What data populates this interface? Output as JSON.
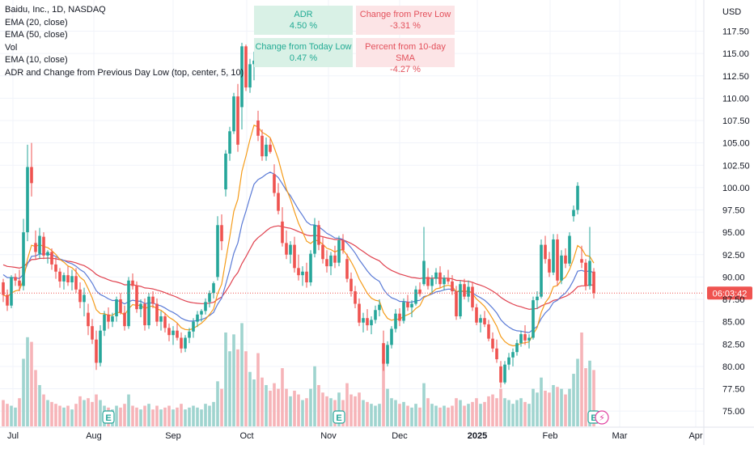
{
  "legend": {
    "title": "Baidu, Inc., 1D, NASDAQ",
    "lines": [
      "EMA (20, close)",
      "EMA (50, close)",
      "Vol",
      "EMA (10, close)",
      "ADR and Change from Previous Day Low (top, center, 5, 10)"
    ]
  },
  "stats_table": {
    "adr_label": "ADR",
    "adr_value": "4.50 %",
    "prev_low_label": "Change from Prev Low",
    "prev_low_value": "-3.31 %",
    "today_low_label": "Change from Today Low",
    "today_low_value": "0.47 %",
    "sma_label": "Percent from 10-day SMA",
    "sma_value": "-4.27 %"
  },
  "currency": "USD",
  "countdown": "06:03:42",
  "colors": {
    "up": "#26a69a",
    "down": "#ef5350",
    "ema10": "#f59c1a",
    "ema20": "#5b7bd6",
    "ema50": "#e0424f",
    "vol_up": "#9fd4cf",
    "vol_down": "#f6b4b8",
    "price_line": "#ef5350"
  },
  "chart_data": {
    "type": "candlestick",
    "symbol": "Baidu, Inc.",
    "interval": "1D",
    "exchange": "NASDAQ",
    "y_axis": {
      "ticks": [
        "117.50",
        "115.00",
        "112.50",
        "110.00",
        "107.50",
        "105.00",
        "102.50",
        "100.00",
        "97.50",
        "95.00",
        "92.50",
        "90.00",
        "87.50",
        "85.00",
        "82.50",
        "80.00",
        "77.50",
        "75.00"
      ],
      "range": [
        74.0,
        119.5
      ]
    },
    "x_axis": {
      "labels": [
        "Jul",
        "Aug",
        "Sep",
        "Oct",
        "Nov",
        "Dec",
        "2025",
        "Feb",
        "Mar",
        "Apr"
      ]
    },
    "last_price_marker": 88.2,
    "ohlc": [
      [
        89.4,
        89.8,
        87.2,
        88.0
      ],
      [
        88.0,
        88.6,
        86.2,
        86.8
      ],
      [
        86.8,
        90.2,
        86.5,
        90.0
      ],
      [
        90.0,
        90.4,
        89.0,
        89.6
      ],
      [
        89.6,
        90.8,
        88.4,
        89.0
      ],
      [
        89.0,
        96.5,
        88.5,
        95.0
      ],
      [
        95.0,
        104.8,
        94.0,
        102.3
      ],
      [
        102.3,
        105.0,
        99.0,
        100.5
      ],
      [
        93.8,
        95.2,
        92.0,
        92.8
      ],
      [
        92.6,
        95.5,
        92.0,
        94.6
      ],
      [
        94.5,
        95.0,
        92.0,
        92.4
      ],
      [
        92.4,
        93.0,
        91.5,
        92.8
      ],
      [
        92.8,
        93.2,
        90.8,
        91.4
      ],
      [
        91.4,
        92.2,
        89.8,
        90.6
      ],
      [
        90.6,
        91.0,
        88.8,
        89.5
      ],
      [
        89.5,
        90.5,
        88.6,
        90.2
      ],
      [
        90.2,
        91.2,
        89.0,
        89.4
      ],
      [
        89.4,
        90.8,
        88.5,
        90.1
      ],
      [
        90.1,
        91.0,
        88.2,
        88.6
      ],
      [
        88.6,
        89.4,
        86.5,
        87.2
      ],
      [
        87.2,
        88.8,
        85.6,
        88.0
      ],
      [
        86.0,
        87.0,
        83.5,
        84.5
      ],
      [
        84.5,
        85.3,
        82.5,
        83.0
      ],
      [
        83.0,
        84.0,
        79.6,
        80.4
      ],
      [
        80.4,
        84.6,
        80.0,
        84.0
      ],
      [
        84.0,
        86.2,
        83.4,
        85.8
      ],
      [
        85.8,
        86.6,
        84.2,
        85.0
      ],
      [
        85.0,
        86.0,
        84.4,
        85.6
      ],
      [
        85.6,
        87.8,
        85.0,
        87.5
      ],
      [
        87.5,
        88.2,
        85.8,
        86.0
      ],
      [
        86.0,
        86.8,
        84.0,
        84.5
      ],
      [
        84.5,
        90.0,
        84.2,
        89.6
      ],
      [
        89.6,
        90.4,
        88.6,
        89.0
      ],
      [
        89.0,
        89.5,
        86.0,
        86.4
      ],
      [
        86.4,
        87.5,
        85.5,
        87.0
      ],
      [
        87.0,
        87.6,
        84.0,
        84.6
      ],
      [
        84.6,
        88.2,
        84.2,
        87.8
      ],
      [
        87.8,
        88.4,
        86.5,
        87.0
      ],
      [
        87.0,
        87.6,
        84.5,
        85.0
      ],
      [
        85.0,
        86.2,
        84.0,
        85.6
      ],
      [
        85.6,
        86.0,
        83.8,
        84.3
      ],
      [
        84.3,
        84.8,
        82.8,
        83.5
      ],
      [
        83.5,
        84.5,
        82.4,
        84.0
      ],
      [
        84.0,
        84.8,
        82.9,
        83.2
      ],
      [
        83.2,
        83.8,
        81.5,
        82.0
      ],
      [
        82.0,
        83.5,
        81.6,
        83.2
      ],
      [
        83.2,
        84.3,
        82.6,
        83.9
      ],
      [
        83.9,
        85.4,
        83.2,
        85.0
      ],
      [
        85.0,
        86.2,
        84.4,
        85.8
      ],
      [
        85.8,
        86.4,
        85.0,
        86.2
      ],
      [
        86.2,
        87.6,
        85.8,
        87.2
      ],
      [
        87.2,
        88.5,
        86.6,
        88.2
      ],
      [
        88.2,
        89.5,
        87.6,
        89.3
      ],
      [
        90.0,
        96.8,
        89.6,
        95.8
      ],
      [
        95.8,
        97.0,
        93.0,
        94.0
      ],
      [
        99.8,
        104.2,
        99.0,
        103.8
      ],
      [
        103.8,
        106.8,
        103.0,
        106.3
      ],
      [
        106.3,
        110.6,
        106.0,
        110.2
      ],
      [
        110.2,
        111.6,
        104.0,
        104.8
      ],
      [
        109.0,
        116.2,
        106.5,
        115.8
      ],
      [
        115.8,
        116.0,
        110.8,
        111.2
      ],
      [
        111.2,
        114.4,
        110.6,
        113.8
      ],
      [
        113.8,
        115.2,
        112.0,
        114.2
      ],
      [
        107.5,
        108.6,
        105.2,
        105.8
      ],
      [
        105.8,
        106.5,
        103.0,
        103.5
      ],
      [
        103.5,
        105.6,
        103.0,
        104.8
      ],
      [
        104.8,
        105.5,
        103.8,
        104.0
      ],
      [
        101.5,
        102.6,
        99.0,
        99.4
      ],
      [
        99.4,
        100.5,
        97.0,
        97.4
      ],
      [
        96.2,
        97.8,
        93.4,
        93.8
      ],
      [
        93.8,
        95.2,
        92.0,
        92.5
      ],
      [
        92.5,
        94.0,
        91.5,
        93.6
      ],
      [
        93.6,
        94.5,
        90.5,
        91.0
      ],
      [
        91.0,
        92.5,
        89.6,
        90.2
      ],
      [
        90.2,
        91.2,
        89.0,
        90.6
      ],
      [
        90.6,
        91.6,
        88.8,
        89.4
      ],
      [
        89.4,
        93.0,
        89.0,
        92.6
      ],
      [
        92.6,
        96.6,
        92.2,
        95.8
      ],
      [
        95.8,
        96.3,
        93.0,
        93.6
      ],
      [
        93.6,
        94.5,
        91.5,
        92.0
      ],
      [
        92.0,
        93.0,
        90.5,
        91.2
      ],
      [
        91.2,
        92.8,
        90.2,
        92.4
      ],
      [
        92.4,
        93.5,
        91.0,
        91.6
      ],
      [
        91.6,
        94.6,
        91.2,
        94.1
      ],
      [
        94.1,
        94.8,
        92.6,
        93.0
      ],
      [
        92.0,
        92.6,
        89.4,
        89.8
      ],
      [
        89.8,
        90.5,
        87.8,
        88.4
      ],
      [
        88.4,
        89.0,
        86.5,
        87.0
      ],
      [
        87.0,
        87.6,
        84.5,
        84.9
      ],
      [
        84.9,
        86.0,
        83.8,
        85.4
      ],
      [
        85.4,
        86.4,
        84.0,
        84.6
      ],
      [
        84.6,
        85.6,
        83.6,
        85.2
      ],
      [
        85.2,
        86.8,
        84.8,
        86.3
      ],
      [
        86.3,
        87.5,
        85.6,
        86.9
      ],
      [
        82.6,
        84.0,
        79.5,
        80.3
      ],
      [
        80.3,
        82.8,
        80.0,
        82.4
      ],
      [
        82.4,
        84.5,
        82.0,
        84.2
      ],
      [
        84.2,
        86.4,
        83.8,
        85.9
      ],
      [
        85.9,
        86.5,
        84.5,
        85.1
      ],
      [
        85.1,
        87.6,
        84.8,
        87.2
      ],
      [
        87.2,
        88.0,
        86.2,
        86.6
      ],
      [
        86.6,
        87.4,
        85.5,
        87.0
      ],
      [
        87.0,
        89.0,
        86.8,
        88.6
      ],
      [
        88.6,
        89.4,
        87.8,
        88.1
      ],
      [
        89.2,
        95.6,
        89.0,
        91.8
      ],
      [
        90.0,
        91.0,
        88.6,
        89.0
      ],
      [
        89.0,
        90.2,
        88.2,
        89.8
      ],
      [
        89.8,
        91.0,
        89.2,
        90.5
      ],
      [
        90.5,
        91.2,
        88.8,
        89.2
      ],
      [
        89.2,
        90.2,
        88.5,
        89.9
      ],
      [
        89.9,
        90.8,
        89.2,
        89.5
      ],
      [
        89.5,
        90.2,
        88.0,
        88.4
      ],
      [
        88.4,
        89.0,
        85.2,
        85.6
      ],
      [
        85.6,
        89.6,
        85.3,
        89.2
      ],
      [
        89.2,
        89.8,
        87.5,
        87.8
      ],
      [
        87.8,
        89.6,
        87.2,
        88.9
      ],
      [
        88.9,
        89.4,
        86.2,
        86.6
      ],
      [
        86.6,
        87.0,
        84.6,
        84.9
      ],
      [
        84.9,
        85.8,
        83.8,
        85.4
      ],
      [
        85.4,
        86.2,
        84.4,
        84.7
      ],
      [
        84.7,
        85.2,
        82.8,
        83.1
      ],
      [
        83.1,
        83.8,
        81.6,
        82.0
      ],
      [
        82.0,
        83.0,
        80.4,
        80.8
      ],
      [
        80.0,
        80.6,
        77.6,
        78.2
      ],
      [
        78.2,
        80.6,
        78.0,
        80.2
      ],
      [
        80.2,
        81.5,
        79.6,
        81.0
      ],
      [
        81.0,
        82.0,
        80.0,
        81.6
      ],
      [
        81.6,
        83.0,
        81.2,
        82.6
      ],
      [
        82.6,
        84.0,
        82.2,
        83.6
      ],
      [
        83.6,
        84.6,
        82.4,
        82.9
      ],
      [
        82.9,
        83.6,
        82.0,
        83.2
      ],
      [
        83.2,
        87.8,
        83.0,
        87.4
      ],
      [
        87.4,
        88.4,
        86.4,
        87.8
      ],
      [
        87.8,
        94.2,
        87.6,
        93.6
      ],
      [
        93.6,
        94.6,
        91.5,
        92.0
      ],
      [
        92.0,
        92.8,
        90.0,
        90.5
      ],
      [
        90.5,
        94.8,
        90.2,
        94.2
      ],
      [
        94.2,
        94.8,
        89.0,
        89.6
      ],
      [
        89.6,
        93.0,
        89.2,
        92.4
      ],
      [
        92.4,
        93.2,
        91.0,
        91.5
      ],
      [
        91.5,
        95.0,
        91.2,
        94.6
      ],
      [
        96.8,
        98.0,
        96.2,
        97.5
      ],
      [
        97.5,
        100.6,
        97.0,
        100.2
      ],
      [
        92.0,
        93.5,
        91.0,
        91.6
      ],
      [
        91.6,
        92.0,
        88.5,
        89.0
      ],
      [
        89.0,
        95.6,
        88.6,
        91.8
      ],
      [
        90.6,
        91.0,
        87.6,
        88.2
      ]
    ],
    "volume": [
      [
        28,
        0
      ],
      [
        24,
        0
      ],
      [
        22,
        1
      ],
      [
        20,
        1
      ],
      [
        30,
        0
      ],
      [
        72,
        1
      ],
      [
        95,
        1
      ],
      [
        90,
        0
      ],
      [
        60,
        0
      ],
      [
        44,
        1
      ],
      [
        34,
        0
      ],
      [
        28,
        1
      ],
      [
        26,
        0
      ],
      [
        24,
        0
      ],
      [
        22,
        0
      ],
      [
        20,
        1
      ],
      [
        22,
        0
      ],
      [
        18,
        1
      ],
      [
        24,
        0
      ],
      [
        32,
        0
      ],
      [
        28,
        1
      ],
      [
        30,
        0
      ],
      [
        26,
        0
      ],
      [
        34,
        0
      ],
      [
        28,
        1
      ],
      [
        22,
        1
      ],
      [
        20,
        0
      ],
      [
        18,
        1
      ],
      [
        22,
        1
      ],
      [
        20,
        0
      ],
      [
        24,
        0
      ],
      [
        34,
        1
      ],
      [
        22,
        0
      ],
      [
        20,
        0
      ],
      [
        18,
        1
      ],
      [
        22,
        0
      ],
      [
        24,
        1
      ],
      [
        18,
        0
      ],
      [
        22,
        0
      ],
      [
        18,
        1
      ],
      [
        20,
        0
      ],
      [
        22,
        0
      ],
      [
        18,
        1
      ],
      [
        20,
        0
      ],
      [
        24,
        0
      ],
      [
        18,
        1
      ],
      [
        20,
        1
      ],
      [
        22,
        1
      ],
      [
        20,
        1
      ],
      [
        18,
        1
      ],
      [
        24,
        1
      ],
      [
        22,
        1
      ],
      [
        26,
        1
      ],
      [
        48,
        1
      ],
      [
        40,
        0
      ],
      [
        100,
        1
      ],
      [
        80,
        1
      ],
      [
        98,
        1
      ],
      [
        82,
        0
      ],
      [
        110,
        1
      ],
      [
        80,
        0
      ],
      [
        58,
        1
      ],
      [
        50,
        1
      ],
      [
        78,
        0
      ],
      [
        52,
        0
      ],
      [
        44,
        1
      ],
      [
        38,
        0
      ],
      [
        46,
        0
      ],
      [
        40,
        0
      ],
      [
        62,
        0
      ],
      [
        40,
        0
      ],
      [
        32,
        1
      ],
      [
        38,
        0
      ],
      [
        34,
        0
      ],
      [
        28,
        1
      ],
      [
        30,
        0
      ],
      [
        40,
        1
      ],
      [
        64,
        1
      ],
      [
        44,
        0
      ],
      [
        36,
        0
      ],
      [
        32,
        0
      ],
      [
        30,
        1
      ],
      [
        28,
        0
      ],
      [
        36,
        1
      ],
      [
        28,
        0
      ],
      [
        46,
        0
      ],
      [
        34,
        0
      ],
      [
        32,
        0
      ],
      [
        36,
        0
      ],
      [
        28,
        1
      ],
      [
        26,
        0
      ],
      [
        24,
        1
      ],
      [
        22,
        1
      ],
      [
        24,
        1
      ],
      [
        72,
        0
      ],
      [
        40,
        1
      ],
      [
        30,
        1
      ],
      [
        28,
        1
      ],
      [
        24,
        0
      ],
      [
        26,
        1
      ],
      [
        22,
        0
      ],
      [
        20,
        1
      ],
      [
        24,
        1
      ],
      [
        20,
        0
      ],
      [
        46,
        1
      ],
      [
        30,
        0
      ],
      [
        24,
        1
      ],
      [
        22,
        1
      ],
      [
        20,
        0
      ],
      [
        22,
        1
      ],
      [
        20,
        0
      ],
      [
        22,
        0
      ],
      [
        30,
        0
      ],
      [
        28,
        1
      ],
      [
        22,
        0
      ],
      [
        24,
        1
      ],
      [
        26,
        0
      ],
      [
        30,
        0
      ],
      [
        24,
        1
      ],
      [
        26,
        0
      ],
      [
        32,
        0
      ],
      [
        34,
        0
      ],
      [
        30,
        0
      ],
      [
        40,
        0
      ],
      [
        30,
        1
      ],
      [
        28,
        1
      ],
      [
        24,
        1
      ],
      [
        28,
        1
      ],
      [
        30,
        1
      ],
      [
        26,
        0
      ],
      [
        24,
        1
      ],
      [
        40,
        1
      ],
      [
        36,
        1
      ],
      [
        52,
        1
      ],
      [
        38,
        0
      ],
      [
        36,
        0
      ],
      [
        44,
        1
      ],
      [
        42,
        0
      ],
      [
        40,
        1
      ],
      [
        34,
        0
      ],
      [
        40,
        1
      ],
      [
        56,
        1
      ],
      [
        72,
        1
      ],
      [
        100,
        0
      ],
      [
        62,
        0
      ],
      [
        70,
        1
      ],
      [
        60,
        0
      ]
    ],
    "events": [
      {
        "symbol": "E",
        "index": 26
      },
      {
        "symbol": "E",
        "index": 83
      },
      {
        "symbol": "E",
        "index": 146
      },
      {
        "symbol": "⚡",
        "index": 148
      }
    ]
  }
}
